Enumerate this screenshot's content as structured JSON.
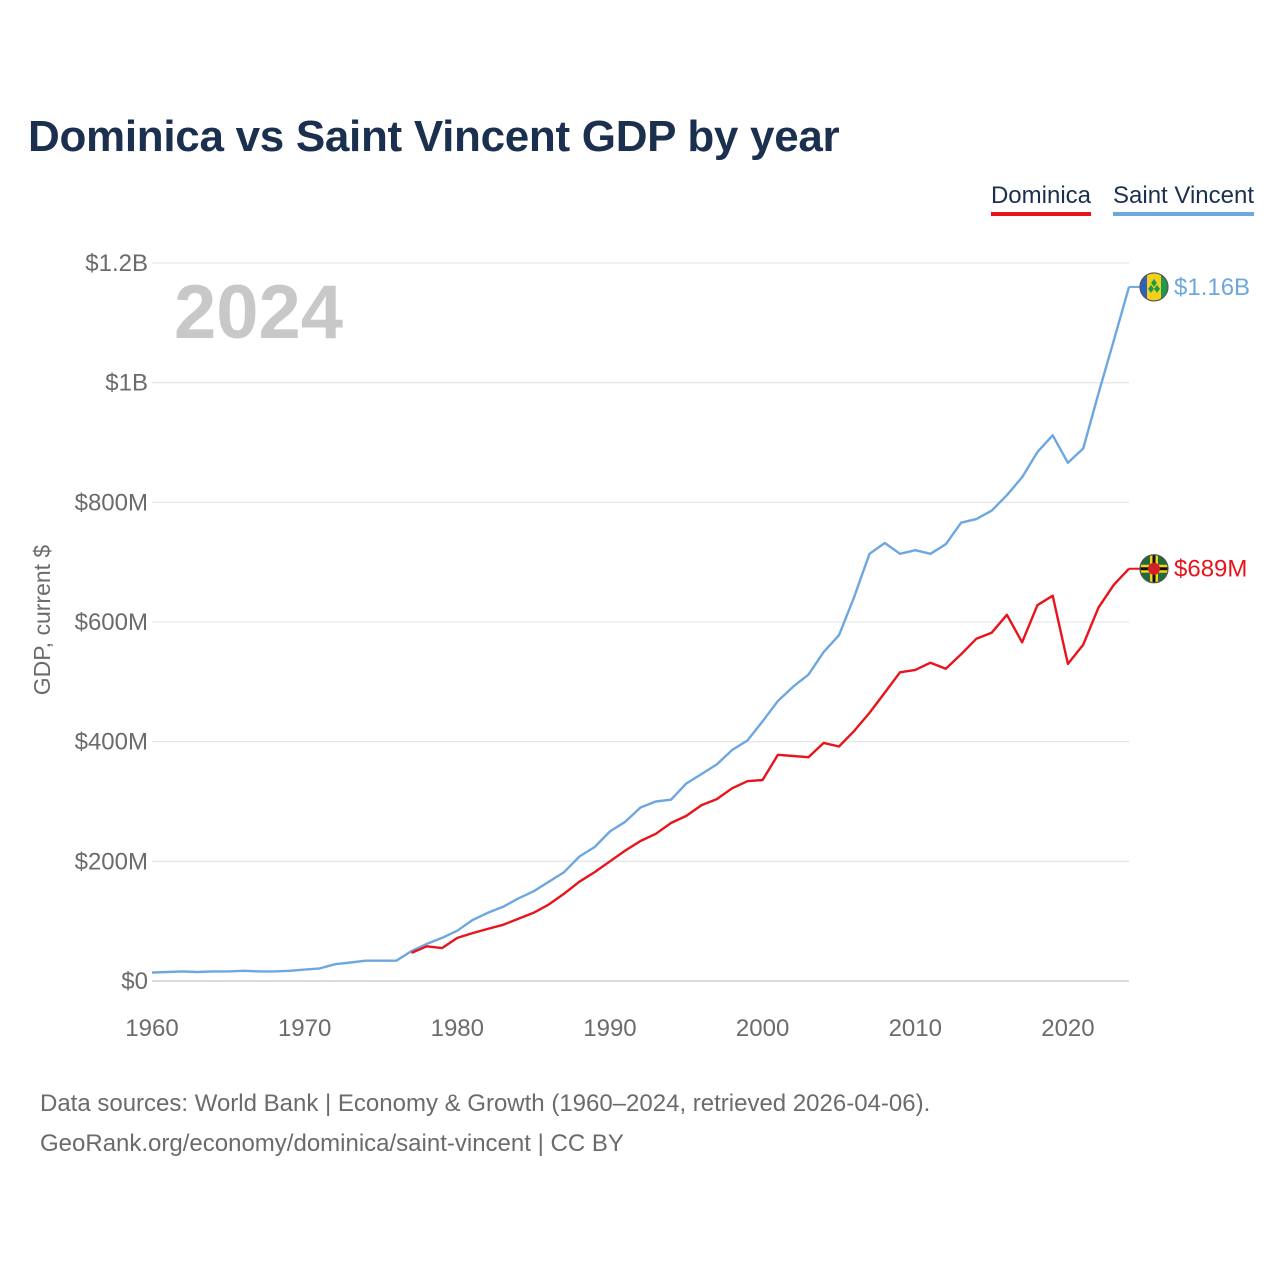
{
  "title": "Dominica vs Saint Vincent GDP by year",
  "year_label": "2024",
  "legend": {
    "dominica": "Dominica",
    "svc": "Saint Vincent"
  },
  "footer": {
    "line1": "Data sources: World Bank | Economy & Growth (1960–2024, retrieved 2026-04-06).",
    "line2": "GeoRank.org/economy/dominica/saint-vincent | CC BY"
  },
  "colors": {
    "dominica": "#e8141b",
    "svc": "#6ea7e0",
    "grid": "#e6e6e6",
    "axis_text": "#6b6b6b",
    "year": "#c8c8c8"
  },
  "chart_data": {
    "type": "line",
    "title": "Dominica vs Saint Vincent GDP by year",
    "xlabel": "",
    "ylabel": "GDP, current $",
    "xlim": [
      1960,
      2024
    ],
    "ylim": [
      0,
      1200
    ],
    "value_unit": "millions USD",
    "x_ticks": [
      1960,
      1970,
      1980,
      1990,
      2000,
      2010,
      2020
    ],
    "y_ticks": [
      0,
      200,
      400,
      600,
      800,
      1000,
      1200
    ],
    "y_tick_labels": [
      "$0",
      "$200M",
      "$400M",
      "$600M",
      "$800M",
      "$1B",
      "$1.2B"
    ],
    "series": [
      {
        "name": "Saint Vincent",
        "color": "#6ea7e0",
        "end_label": "$1.16B",
        "x": [
          1960,
          1961,
          1962,
          1963,
          1964,
          1965,
          1966,
          1967,
          1968,
          1969,
          1970,
          1971,
          1972,
          1973,
          1974,
          1975,
          1976,
          1977,
          1978,
          1979,
          1980,
          1981,
          1982,
          1983,
          1984,
          1985,
          1986,
          1987,
          1988,
          1989,
          1990,
          1991,
          1992,
          1993,
          1994,
          1995,
          1996,
          1997,
          1998,
          1999,
          2000,
          2001,
          2002,
          2003,
          2004,
          2005,
          2006,
          2007,
          2008,
          2009,
          2010,
          2011,
          2012,
          2013,
          2014,
          2015,
          2016,
          2017,
          2018,
          2019,
          2020,
          2021,
          2022,
          2023,
          2024
        ],
        "values": [
          14,
          15,
          16,
          15,
          16,
          16,
          17,
          16,
          16,
          17,
          19,
          21,
          28,
          31,
          34,
          34,
          34,
          50,
          62,
          72,
          84,
          102,
          114,
          124,
          138,
          150,
          166,
          182,
          208,
          224,
          250,
          266,
          290,
          300,
          303,
          330,
          346,
          362,
          386,
          402,
          434,
          468,
          492,
          512,
          550,
          578,
          642,
          714,
          732,
          714,
          720,
          714,
          730,
          766,
          772,
          786,
          812,
          842,
          884,
          912,
          866,
          890,
          982,
          1070,
          1160
        ]
      },
      {
        "name": "Dominica",
        "color": "#e8141b",
        "end_label": "$689M",
        "x": [
          1977,
          1978,
          1979,
          1980,
          1981,
          1982,
          1983,
          1984,
          1985,
          1986,
          1987,
          1988,
          1989,
          1990,
          1991,
          1992,
          1993,
          1994,
          1995,
          1996,
          1997,
          1998,
          1999,
          2000,
          2001,
          2002,
          2003,
          2004,
          2005,
          2006,
          2007,
          2008,
          2009,
          2010,
          2011,
          2012,
          2013,
          2014,
          2015,
          2016,
          2017,
          2018,
          2019,
          2020,
          2021,
          2022,
          2023,
          2024
        ],
        "values": [
          47,
          58,
          55,
          72,
          80,
          87,
          94,
          104,
          114,
          128,
          146,
          166,
          182,
          200,
          218,
          234,
          246,
          264,
          276,
          294,
          304,
          322,
          334,
          336,
          378,
          376,
          374,
          398,
          392,
          418,
          448,
          482,
          516,
          520,
          532,
          522,
          546,
          572,
          582,
          612,
          566,
          628,
          644,
          530,
          562,
          624,
          662,
          689
        ]
      }
    ]
  }
}
